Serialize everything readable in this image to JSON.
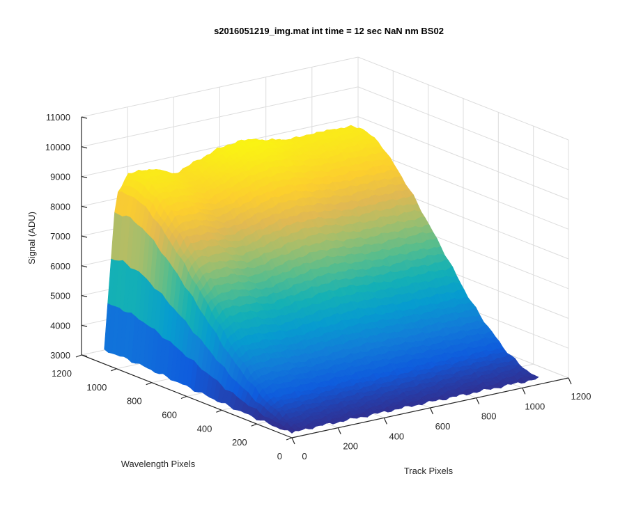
{
  "chart_data": {
    "type": "surface",
    "title": "s2016051219_img.mat int time = 12 sec  NaN nm BS02",
    "xlabel": "Track Pixels",
    "ylabel": "Wavelength Pixels",
    "zlabel": "Signal (ADU)",
    "xlim": [
      0,
      1200
    ],
    "ylim": [
      0,
      1200
    ],
    "zlim": [
      3000,
      11000
    ],
    "x_ticks": [
      "0",
      "200",
      "400",
      "600",
      "800",
      "1000",
      "1200"
    ],
    "y_ticks": [
      "0",
      "200",
      "400",
      "600",
      "800",
      "1000",
      "1200"
    ],
    "z_ticks": [
      "3000",
      "4000",
      "5000",
      "6000",
      "7000",
      "8000",
      "9000",
      "10000",
      "11000"
    ],
    "data_extent": {
      "x": [
        0,
        1070
      ],
      "y": [
        0,
        1070
      ]
    },
    "colormap": "parula",
    "surface_profile": {
      "description_values": "Signal peaks near high wavelength pixels and falls toward low wavelength pixels",
      "ridge_y": [
        1070,
        1000,
        900,
        800,
        700,
        600,
        500,
        400,
        300,
        200,
        100,
        0
      ],
      "ridge_signal": [
        9500,
        9600,
        9300,
        8600,
        7800,
        6900,
        6000,
        5100,
        4400,
        3800,
        3400,
        3200
      ],
      "track_x": [
        0,
        50,
        100,
        200,
        300,
        400,
        500,
        600,
        700,
        800,
        900,
        1000,
        1070
      ],
      "track_factor": [
        0.05,
        0.85,
        0.97,
        1.0,
        0.96,
        0.99,
        1.0,
        1.0,
        0.99,
        1.0,
        1.02,
        1.0,
        0.97
      ]
    },
    "grid": true
  }
}
